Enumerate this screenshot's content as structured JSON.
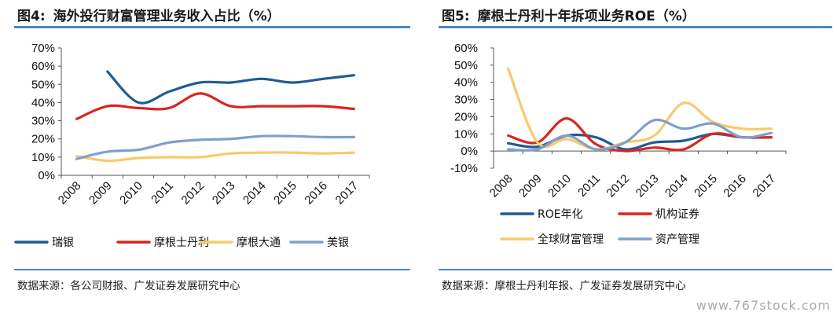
{
  "left": {
    "fig_num": "图4:",
    "title": "海外投行财富管理业务收入占比（%）",
    "source": "数据来源：各公司财报、广发证券发展研究中心"
  },
  "right": {
    "fig_num": "图5:",
    "title": "摩根士丹利十年拆项业务ROE（%）",
    "source": "数据来源：摩根士丹利年报、广发证券发展研究中心"
  },
  "watermark": "www.767stock.com",
  "chart_data": [
    {
      "type": "line",
      "categories": [
        "2008",
        "2009",
        "2010",
        "2011",
        "2012",
        "2013",
        "2014",
        "2015",
        "2016",
        "2017"
      ],
      "ylim": [
        0,
        70
      ],
      "yticks": [
        0,
        10,
        20,
        30,
        40,
        50,
        60,
        70
      ],
      "ytick_labels": [
        "0%",
        "10%",
        "20%",
        "30%",
        "40%",
        "50%",
        "60%",
        "70%"
      ],
      "legend": "bottom",
      "series": [
        {
          "name": "瑞银",
          "color": "#1f5b94",
          "values": [
            null,
            57,
            40,
            46,
            51,
            51,
            53,
            51,
            53,
            55
          ]
        },
        {
          "name": "摩根士丹利",
          "color": "#d7261e",
          "values": [
            31,
            38,
            37,
            37,
            45,
            38,
            38,
            38,
            38,
            36.5
          ]
        },
        {
          "name": "摩根大通",
          "color": "#f9c96b",
          "values": [
            10.5,
            8,
            9.5,
            10,
            10,
            12,
            12.5,
            12.5,
            12,
            12.5
          ]
        },
        {
          "name": "美银",
          "color": "#7f9fcb",
          "values": [
            9,
            13,
            14,
            18,
            19.5,
            20,
            21.5,
            21.5,
            21,
            21
          ]
        }
      ]
    },
    {
      "type": "line",
      "categories": [
        "2008",
        "2009",
        "2010",
        "2011",
        "2012",
        "2013",
        "2014",
        "2015",
        "2016",
        "2017"
      ],
      "ylim": [
        -10,
        60
      ],
      "yticks": [
        -10,
        0,
        10,
        20,
        30,
        40,
        50,
        60
      ],
      "ytick_labels": [
        "-10%",
        "0%",
        "10%",
        "20%",
        "30%",
        "40%",
        "50%",
        "60%"
      ],
      "legend": "bottom",
      "series": [
        {
          "name": "ROE年化",
          "color": "#1f5b94",
          "values": [
            4.5,
            2.5,
            9,
            8,
            1,
            5,
            6,
            10,
            8,
            8
          ]
        },
        {
          "name": "机构证券",
          "color": "#d7261e",
          "values": [
            9,
            5,
            19,
            4,
            0,
            2,
            1,
            10,
            8,
            8
          ]
        },
        {
          "name": "全球财富管理",
          "color": "#f9c96b",
          "values": [
            48,
            5,
            7,
            1,
            5,
            9,
            28,
            17,
            13,
            13
          ]
        },
        {
          "name": "资产管理",
          "color": "#7f9fcb",
          "values": [
            1,
            1,
            9,
            1,
            5,
            18,
            13,
            16,
            8,
            10.5
          ]
        }
      ]
    }
  ]
}
